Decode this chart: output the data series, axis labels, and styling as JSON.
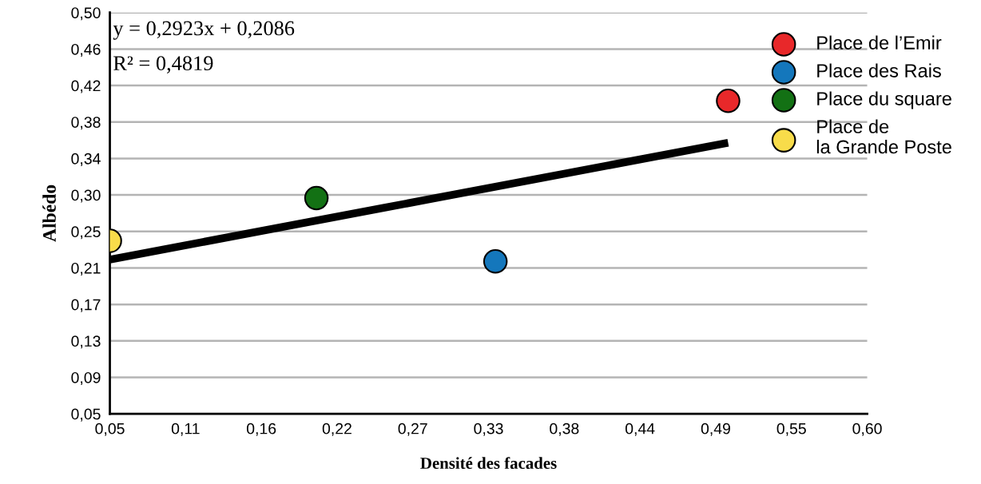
{
  "chart_data": {
    "type": "scatter",
    "xlabel": "Densité des facades",
    "ylabel": "Albédo",
    "annotations": [
      "y = 0,2923x + 0,2086",
      "R² = 0,4819"
    ],
    "series": [
      {
        "name": "Place de l’Emir",
        "color": "#e8282a",
        "x": [
          0.499
        ],
        "values": [
          0.401
        ]
      },
      {
        "name": "Place des Rais",
        "color": "#1477bc",
        "x": [
          0.33
        ],
        "values": [
          0.221
        ]
      },
      {
        "name": "Place du square",
        "color": "#137114",
        "x": [
          0.2
        ],
        "values": [
          0.292
        ]
      },
      {
        "name": "Place de\nla Grande Poste",
        "color": "#f8dc4a",
        "x": [
          0.05
        ],
        "values": [
          0.244
        ]
      },
      {
        "type": "line",
        "marker": "none",
        "color": "#000000",
        "x": [
          0.05,
          0.499
        ],
        "values": [
          0.223,
          0.354
        ]
      }
    ],
    "xlim": [
      0.05,
      0.6
    ],
    "ylim": [
      0.05,
      0.5
    ],
    "xticks": [
      {
        "value": 0.05,
        "label": "0,05"
      },
      {
        "value": 0.105,
        "label": "0,11"
      },
      {
        "value": 0.16,
        "label": "0,16"
      },
      {
        "value": 0.215,
        "label": "0,22"
      },
      {
        "value": 0.27,
        "label": "0,27"
      },
      {
        "value": 0.325,
        "label": "0,33"
      },
      {
        "value": 0.38,
        "label": "0,38"
      },
      {
        "value": 0.435,
        "label": "0,44"
      },
      {
        "value": 0.49,
        "label": "0,49"
      },
      {
        "value": 0.545,
        "label": "0,55"
      },
      {
        "value": 0.6,
        "label": "0,60"
      }
    ],
    "yticks": [
      {
        "value": 0.05,
        "label": "0,05"
      },
      {
        "value": 0.0909,
        "label": "0,09"
      },
      {
        "value": 0.1318,
        "label": "0,13"
      },
      {
        "value": 0.1727,
        "label": "0,17"
      },
      {
        "value": 0.2136,
        "label": "0,21"
      },
      {
        "value": 0.2545,
        "label": "0,25"
      },
      {
        "value": 0.2955,
        "label": "0,30"
      },
      {
        "value": 0.3364,
        "label": "0,34"
      },
      {
        "value": 0.3773,
        "label": "0,38"
      },
      {
        "value": 0.4182,
        "label": "0,42"
      },
      {
        "value": 0.4591,
        "label": "0,46"
      },
      {
        "value": 0.5,
        "label": "0,50"
      }
    ],
    "grid": "y",
    "legend": "top right",
    "marker": "circle"
  }
}
